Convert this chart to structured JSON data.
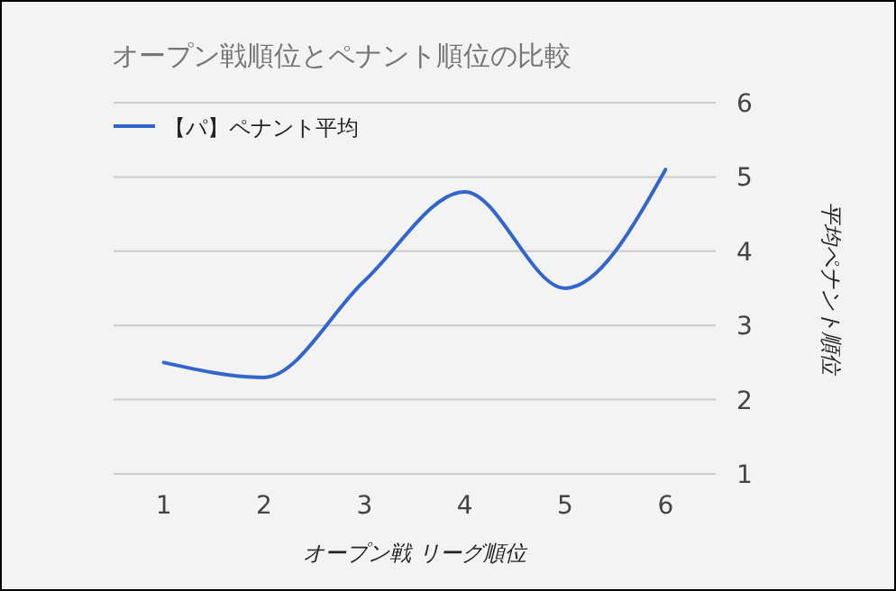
{
  "chart_data": {
    "type": "line",
    "title": "オープン戦順位とペナント順位の比較",
    "xlabel": "オープン戦 リーグ順位",
    "ylabel": "平均ペナント順位",
    "categories": [
      "1",
      "2",
      "3",
      "4",
      "5",
      "6"
    ],
    "series": [
      {
        "name": "【パ】ペナント平均",
        "color": "#3366cc",
        "values": [
          2.5,
          2.3,
          3.6,
          4.8,
          3.5,
          5.1
        ]
      }
    ],
    "ylim": [
      1,
      6
    ],
    "yticks": [
      1,
      2,
      3,
      4,
      5,
      6
    ],
    "grid": "y",
    "legend": "top left",
    "marker": "none",
    "line_style": "solid"
  }
}
